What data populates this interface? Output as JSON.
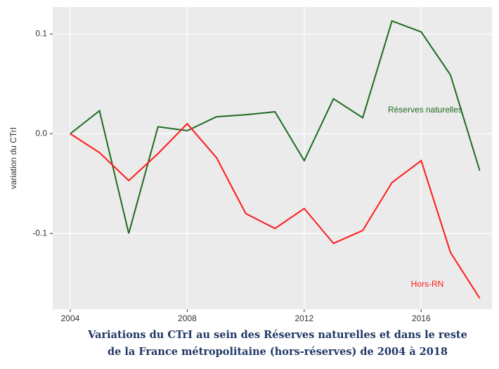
{
  "chart_data": {
    "type": "line",
    "title": [
      "Variations du CTrI au sein des Réserves naturelles et dans le reste",
      "de la France métropolitaine (hors-réserves) de 2004 à 2018"
    ],
    "y_label": "variation du CTrI",
    "x": [
      2004,
      2005,
      2006,
      2007,
      2008,
      2009,
      2010,
      2011,
      2012,
      2013,
      2014,
      2015,
      2016,
      2017,
      2018
    ],
    "series": [
      {
        "name": "Réserves naturelles",
        "color": "#1e6b1e",
        "values": [
          0,
          0.023,
          -0.1,
          0.007,
          0.003,
          0.017,
          0.019,
          0.022,
          -0.027,
          0.035,
          0.016,
          0.113,
          0.102,
          0.059,
          -0.037
        ]
      },
      {
        "name": "Hors-RN",
        "color": "#ff1a1a",
        "values": [
          0,
          -0.019,
          -0.047,
          -0.02,
          0.01,
          -0.024,
          -0.08,
          -0.095,
          -0.075,
          -0.11,
          -0.097,
          -0.049,
          -0.027,
          -0.119,
          -0.165
        ]
      }
    ],
    "xlim": [
      2003.4,
      2018.42
    ],
    "xticks": [
      2004,
      2008,
      2012,
      2016
    ],
    "ylim": [
      -0.176,
      0.127
    ],
    "yticks": [
      -0.1,
      {
        "value": 0,
        "label": "0.0"
      },
      0.1
    ],
    "grid": true
  }
}
